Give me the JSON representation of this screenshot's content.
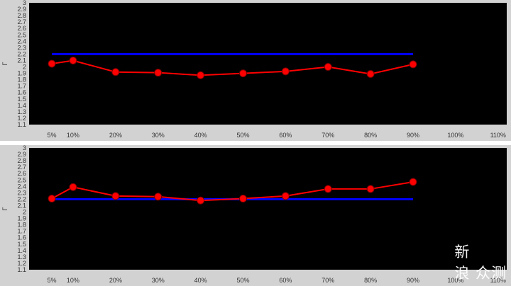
{
  "chart_data": [
    {
      "type": "line",
      "ylabel": "Γ",
      "ylim": [
        1.1,
        3
      ],
      "yticks": [
        "1.1",
        "1.2",
        "1.3",
        "1.4",
        "1.5",
        "1.6",
        "1.7",
        "1.8",
        "1.9",
        "2",
        "2.1",
        "2.2",
        "2.3",
        "2.4",
        "2.5",
        "2.6",
        "2.7",
        "2.8",
        "2.9",
        "3"
      ],
      "x_tick_labels": [
        "5%",
        "10%",
        "20%",
        "30%",
        "40%",
        "50%",
        "60%",
        "70%",
        "80%",
        "90%",
        "100%",
        "110%"
      ],
      "x_tick_values": [
        5,
        10,
        20,
        30,
        40,
        50,
        60,
        70,
        80,
        90,
        100,
        110
      ],
      "xlim": [
        0,
        115
      ],
      "reference_line": {
        "value": 2.2,
        "x_range": [
          5,
          90
        ],
        "color": "#0000ff"
      },
      "series": [
        {
          "color": "#ff0000",
          "x": [
            5,
            10,
            20,
            30,
            40,
            50,
            60,
            70,
            80,
            90
          ],
          "values": [
            2.05,
            2.1,
            1.92,
            1.91,
            1.87,
            1.9,
            1.93,
            2.0,
            1.89,
            2.04
          ]
        }
      ],
      "grid": false
    },
    {
      "type": "line",
      "ylabel": "Γ",
      "ylim": [
        1.1,
        3
      ],
      "yticks": [
        "1.1",
        "1.2",
        "1.3",
        "1.4",
        "1.5",
        "1.6",
        "1.7",
        "1.8",
        "1.9",
        "2",
        "2.1",
        "2.2",
        "2.3",
        "2.4",
        "2.5",
        "2.6",
        "2.7",
        "2.8",
        "2.9",
        "3"
      ],
      "x_tick_labels": [
        "5%",
        "10%",
        "20%",
        "30%",
        "40%",
        "50%",
        "60%",
        "70%",
        "80%",
        "90%",
        "100%",
        "110%"
      ],
      "x_tick_values": [
        5,
        10,
        20,
        30,
        40,
        50,
        60,
        70,
        80,
        90,
        100,
        110
      ],
      "xlim": [
        0,
        115
      ],
      "reference_line": {
        "value": 2.2,
        "x_range": [
          5,
          90
        ],
        "color": "#0000ff"
      },
      "series": [
        {
          "color": "#ff0000",
          "x": [
            5,
            10,
            20,
            30,
            40,
            50,
            60,
            70,
            80,
            90
          ],
          "values": [
            2.21,
            2.39,
            2.25,
            2.24,
            2.18,
            2.21,
            2.25,
            2.36,
            2.36,
            2.47
          ]
        }
      ],
      "grid": false
    }
  ],
  "watermark": "新\n浪 众测"
}
